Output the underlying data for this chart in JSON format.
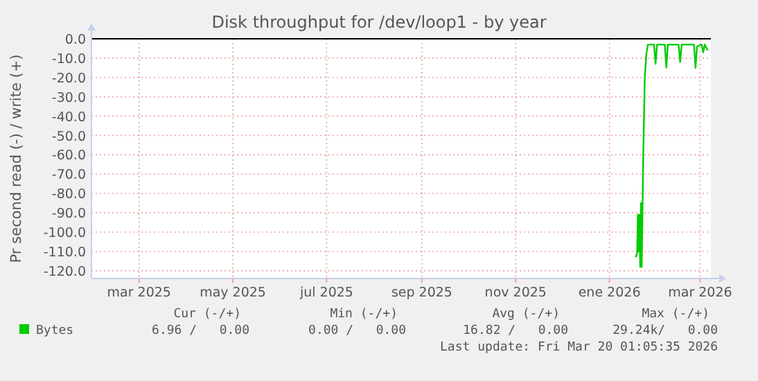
{
  "chart_data": {
    "type": "line",
    "title": "Disk throughput for /dev/loop1 - by year",
    "ylabel": "Pr second read (-) / write (+)",
    "xlim": [
      "2025-01-29",
      "2026-03-08"
    ],
    "xticks": [
      {
        "value": "2025-03-01",
        "label": "mar 2025"
      },
      {
        "value": "2025-05-01",
        "label": "may 2025"
      },
      {
        "value": "2025-07-01",
        "label": "jul 2025"
      },
      {
        "value": "2025-09-01",
        "label": "sep 2025"
      },
      {
        "value": "2025-11-01",
        "label": "nov 2025"
      },
      {
        "value": "2026-01-01",
        "label": "ene 2026"
      },
      {
        "value": "2026-03-01",
        "label": "mar 2026"
      }
    ],
    "ylim": [
      -124,
      0
    ],
    "yticks": [
      {
        "value": 0,
        "label": "0.0"
      },
      {
        "value": -10,
        "label": "-10.0"
      },
      {
        "value": -20,
        "label": "-20.0"
      },
      {
        "value": -30,
        "label": "-30.0"
      },
      {
        "value": -40,
        "label": "-40.0"
      },
      {
        "value": -50,
        "label": "-50.0"
      },
      {
        "value": -60,
        "label": "-60.0"
      },
      {
        "value": -70,
        "label": "-70.0"
      },
      {
        "value": -80,
        "label": "-80.0"
      },
      {
        "value": -90,
        "label": "-90.0"
      },
      {
        "value": -100,
        "label": "-100.0"
      },
      {
        "value": -110,
        "label": "-110.0"
      },
      {
        "value": -120,
        "label": "-120.0"
      }
    ],
    "grid": true,
    "legend": "bottom left",
    "marker": "none",
    "line_style": "solid",
    "ref_lines": [
      {
        "axis": "y",
        "value": 0,
        "color": "#000000"
      }
    ],
    "x": [
      "2026-01-18",
      "2026-01-19",
      "2026-01-19T12:00",
      "2026-01-20",
      "2026-01-20T12:00",
      "2026-01-21",
      "2026-01-21T12:00",
      "2026-01-22",
      "2026-01-23",
      "2026-01-24",
      "2026-01-25",
      "2026-01-26",
      "2026-01-30",
      "2026-01-31",
      "2026-02-01",
      "2026-02-06",
      "2026-02-07",
      "2026-02-08",
      "2026-02-15",
      "2026-02-16",
      "2026-02-17",
      "2026-02-25",
      "2026-02-26",
      "2026-02-27",
      "2026-03-02",
      "2026-03-03",
      "2026-03-04",
      "2026-03-06"
    ],
    "series": [
      {
        "name": "Bytes",
        "color": "#00cc00",
        "values": [
          -113,
          -111,
          -91,
          -110,
          -91,
          -118,
          -85,
          -118,
          -60,
          -20,
          -8,
          -3,
          -3,
          -13,
          -3,
          -3,
          -15,
          -3,
          -3,
          -12,
          -3,
          -3,
          -15,
          -4,
          -3,
          -7,
          -3,
          -6
        ]
      }
    ],
    "annotations": [
      "Cur (-/+)",
      "Min (-/+)",
      "Avg (-/+)",
      "Max (-/+)",
      "6.96 /   0.00",
      "0.00 /   0.00",
      "16.82 /   0.00",
      "29.24k/   0.00",
      "Last update: Fri Mar 20 01:05:35 2026"
    ]
  }
}
